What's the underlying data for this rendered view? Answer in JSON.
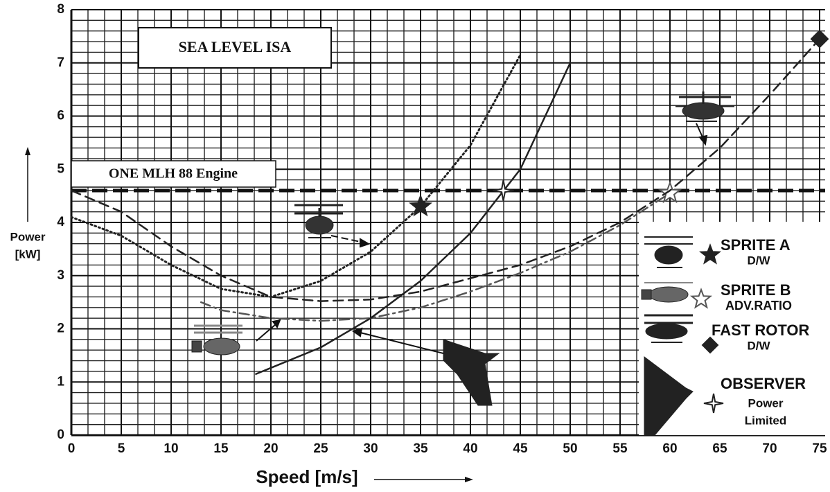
{
  "chart_data": {
    "type": "line",
    "title": "SEA LEVEL ISA",
    "xlabel": "Speed [m/s]",
    "ylabel": [
      "Power",
      "[kW]"
    ],
    "xlim": [
      0,
      75
    ],
    "ylim": [
      0,
      8
    ],
    "xticks": [
      0,
      5,
      10,
      15,
      20,
      25,
      30,
      35,
      40,
      45,
      50,
      55,
      60,
      65,
      70,
      75
    ],
    "yticks": [
      0,
      1,
      2,
      3,
      4,
      5,
      6,
      7,
      8
    ],
    "grid": true,
    "minor_divisions": {
      "x": 3,
      "y": 5
    },
    "engine_limit": {
      "label": "ONE MLH 88 Engine",
      "value": 4.6,
      "color": "#111111"
    },
    "legend": "lower right",
    "series": [
      {
        "name": "SPRITE A",
        "note": [
          "D/W"
        ],
        "color": "#222222",
        "dash": "dotted",
        "marker": "star",
        "x": [
          0,
          5,
          10,
          15,
          20,
          25,
          30,
          35,
          40,
          45
        ],
        "values": [
          4.1,
          3.75,
          3.2,
          2.75,
          2.6,
          2.9,
          3.45,
          4.3,
          5.45,
          7.15
        ],
        "point": {
          "x": 35,
          "y": 4.3
        }
      },
      {
        "name": "SPRITE B",
        "note": [
          "ADV.RATIO"
        ],
        "color": "#555555",
        "dash": "dashdot",
        "marker": "star-open",
        "x": [
          13,
          15,
          20,
          25,
          30,
          35,
          40,
          45,
          50,
          55,
          60
        ],
        "values": [
          2.5,
          2.35,
          2.2,
          2.15,
          2.2,
          2.4,
          2.7,
          3.05,
          3.45,
          3.95,
          4.55
        ],
        "point": {
          "x": 60,
          "y": 4.55
        }
      },
      {
        "name": "FAST ROTOR",
        "note": [
          "D/W"
        ],
        "color": "#222222",
        "dash": "dashed",
        "marker": "diamond",
        "x": [
          0,
          5,
          10,
          15,
          20,
          25,
          30,
          35,
          40,
          45,
          50,
          55,
          60,
          65,
          70,
          75
        ],
        "values": [
          4.6,
          4.2,
          3.55,
          3.0,
          2.6,
          2.52,
          2.55,
          2.7,
          2.95,
          3.2,
          3.55,
          4.0,
          4.6,
          5.4,
          6.4,
          7.45
        ],
        "point": {
          "x": 75,
          "y": 7.45
        }
      },
      {
        "name": "OBSERVER",
        "note": [
          "Power",
          "Limited"
        ],
        "color": "#222222",
        "dash": "solid",
        "marker": "star4",
        "x": [
          18.5,
          25,
          30,
          35,
          40,
          45,
          50
        ],
        "values": [
          1.15,
          1.65,
          2.2,
          2.9,
          3.8,
          5.0,
          7.0
        ],
        "point": {
          "x": 43.3,
          "y": 4.6
        }
      }
    ]
  }
}
